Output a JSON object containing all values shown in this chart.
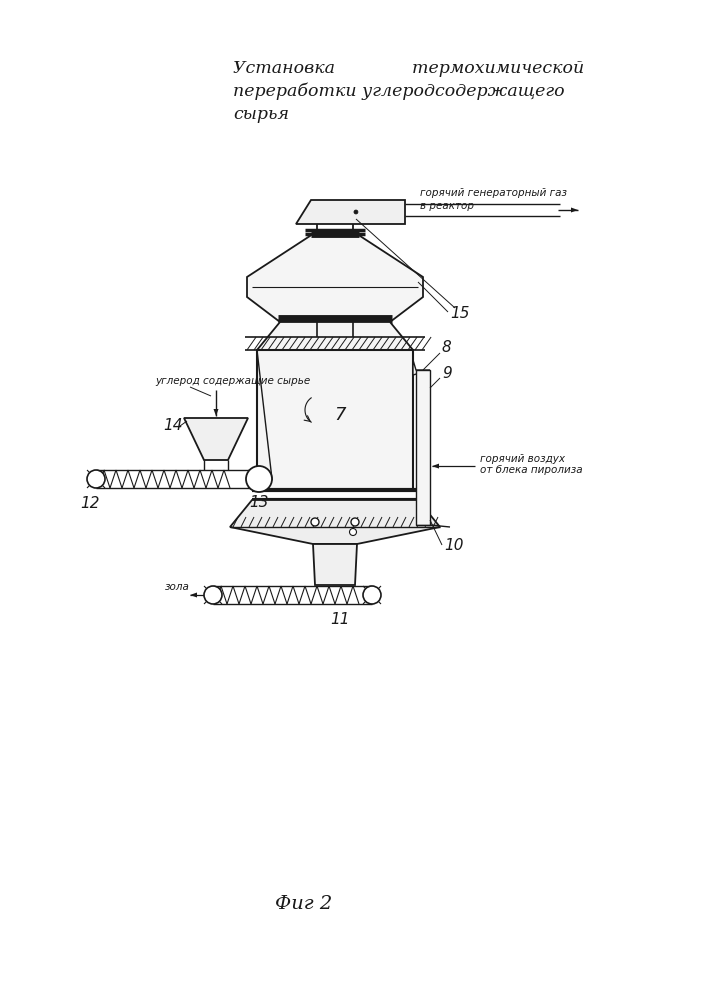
{
  "title_line1": "Установка              термохимической",
  "title_line2": "переработки углеродсодержащего",
  "title_line3": "сырья",
  "fig_label": "Фиг 2",
  "label_7": "7",
  "label_8": "8",
  "label_9": "9",
  "label_10": "10",
  "label_11": "11",
  "label_12": "12",
  "label_13": "13",
  "label_14": "14",
  "label_15": "15",
  "text_gas_1": "горячий генераторный газ",
  "text_gas_2": "в реактор",
  "text_air_1": "горячий воздух",
  "text_air_2": "от блека пиролиза",
  "text_raw": "углерод содержащие сырье",
  "text_ash": "зола",
  "line_color": "#1a1a1a",
  "bg_color": "#ffffff",
  "title_fontsize": 12.5,
  "label_fontsize": 11,
  "small_fontsize": 7.5
}
